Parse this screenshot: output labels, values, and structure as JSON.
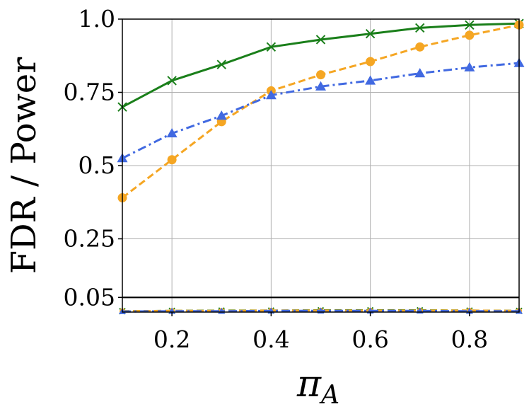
{
  "chart_data": {
    "type": "line",
    "title": "",
    "xlabel": "π",
    "xlabel_subscript": "A",
    "ylabel": "FDR / Power",
    "xlim": [
      0.1,
      0.9
    ],
    "ylim": [
      0.0,
      1.0
    ],
    "x_ticks": [
      0.2,
      0.4,
      0.6,
      0.8
    ],
    "x_tick_labels": [
      "0.2",
      "0.4",
      "0.6",
      "0.8"
    ],
    "y_ticks": [
      0.05,
      0.25,
      0.5,
      0.75,
      1.0
    ],
    "y_tick_labels": [
      "0.05",
      "0.25",
      "0.5",
      "0.75",
      "1.0"
    ],
    "grid": true,
    "reference_line": 0.05,
    "x": [
      0.1,
      0.2,
      0.3,
      0.4,
      0.5,
      0.6,
      0.7,
      0.8,
      0.9
    ],
    "series": [
      {
        "role": "power",
        "color": "#1a7f1a",
        "dash": "solid",
        "marker": "x",
        "values": [
          0.7,
          0.79,
          0.845,
          0.905,
          0.93,
          0.95,
          0.97,
          0.98,
          0.985
        ]
      },
      {
        "role": "power",
        "color": "#f5a623",
        "dash": "dashed",
        "marker": "circle",
        "values": [
          0.39,
          0.52,
          0.65,
          0.755,
          0.81,
          0.855,
          0.905,
          0.945,
          0.98
        ]
      },
      {
        "role": "power",
        "color": "#4169e1",
        "dash": "dashdot",
        "marker": "triangle",
        "values": [
          0.525,
          0.61,
          0.67,
          0.74,
          0.77,
          0.79,
          0.815,
          0.835,
          0.85
        ]
      },
      {
        "role": "fdr",
        "color": "#1a7f1a",
        "dash": "dashed",
        "marker": "x",
        "values": [
          0.003,
          0.004,
          0.005,
          0.005,
          0.006,
          0.006,
          0.006,
          0.005,
          0.004
        ]
      },
      {
        "role": "fdr",
        "color": "#f5a623",
        "dash": "dashed",
        "marker": "circle",
        "values": [
          0.003,
          0.004,
          0.004,
          0.005,
          0.005,
          0.005,
          0.005,
          0.005,
          0.004
        ]
      },
      {
        "role": "fdr",
        "color": "#4169e1",
        "dash": "dashdot",
        "marker": "triangle",
        "values": [
          0.002,
          0.003,
          0.003,
          0.004,
          0.004,
          0.004,
          0.004,
          0.003,
          0.003
        ]
      }
    ]
  }
}
